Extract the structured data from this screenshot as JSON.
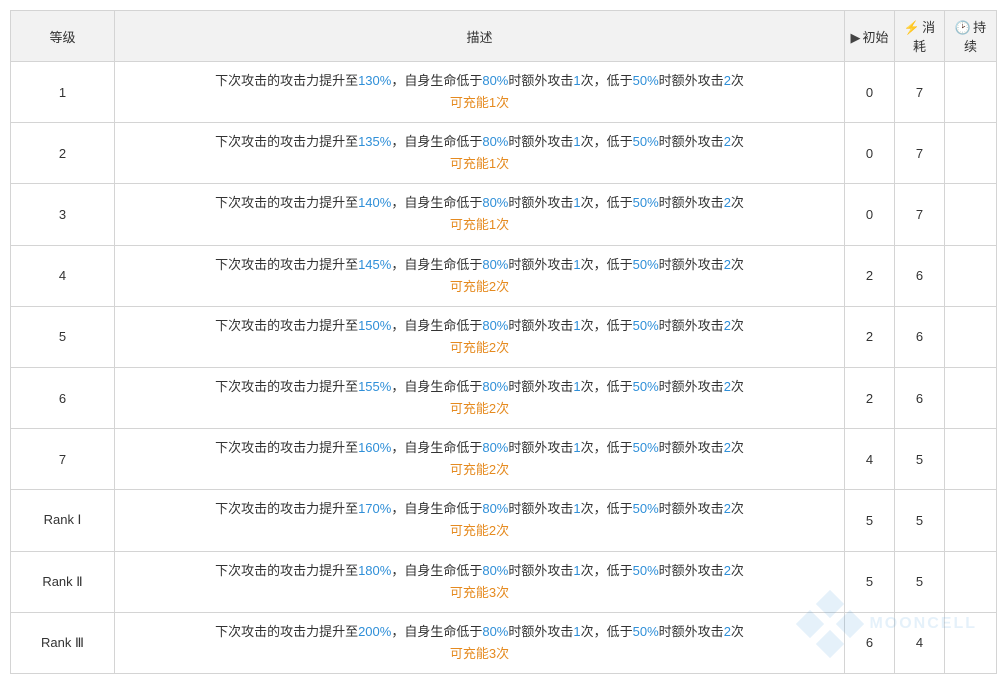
{
  "table": {
    "headers": {
      "level": "等级",
      "desc": "描述",
      "init": "初始",
      "cost": "消耗",
      "dur": "持续"
    },
    "header_icons": {
      "init": "▶",
      "cost": "⚡",
      "dur": "🕑"
    },
    "colors": {
      "blue": "#2f8fd8",
      "orange": "#e58a1f",
      "bolt": "#6fbf3a",
      "border": "#d4d4d4",
      "header_bg": "#f2f2f2"
    },
    "desc_template": {
      "t1": "下次攻击的攻击力提升至",
      "t2": "，自身生命低于",
      "hp1": "80%",
      "t3": "时额外攻击",
      "extra1": "1",
      "t4": "次，低于",
      "hp2": "50%",
      "t5": "时额外攻击",
      "extra2": "2",
      "t6": "次",
      "t7_prefix": "可充能",
      "t7_suffix": "次"
    },
    "rows": [
      {
        "level": "1",
        "atk": "130%",
        "charge": "1",
        "init": "0",
        "cost": "7",
        "dur": ""
      },
      {
        "level": "2",
        "atk": "135%",
        "charge": "1",
        "init": "0",
        "cost": "7",
        "dur": ""
      },
      {
        "level": "3",
        "atk": "140%",
        "charge": "1",
        "init": "0",
        "cost": "7",
        "dur": ""
      },
      {
        "level": "4",
        "atk": "145%",
        "charge": "2",
        "init": "2",
        "cost": "6",
        "dur": ""
      },
      {
        "level": "5",
        "atk": "150%",
        "charge": "2",
        "init": "2",
        "cost": "6",
        "dur": ""
      },
      {
        "level": "6",
        "atk": "155%",
        "charge": "2",
        "init": "2",
        "cost": "6",
        "dur": ""
      },
      {
        "level": "7",
        "atk": "160%",
        "charge": "2",
        "init": "4",
        "cost": "5",
        "dur": ""
      },
      {
        "level": "Rank Ⅰ",
        "atk": "170%",
        "charge": "2",
        "init": "5",
        "cost": "5",
        "dur": ""
      },
      {
        "level": "Rank Ⅱ",
        "atk": "180%",
        "charge": "3",
        "init": "5",
        "cost": "5",
        "dur": ""
      },
      {
        "level": "Rank Ⅲ",
        "atk": "200%",
        "charge": "3",
        "init": "6",
        "cost": "4",
        "dur": ""
      }
    ]
  },
  "watermark": "MOONCELL"
}
